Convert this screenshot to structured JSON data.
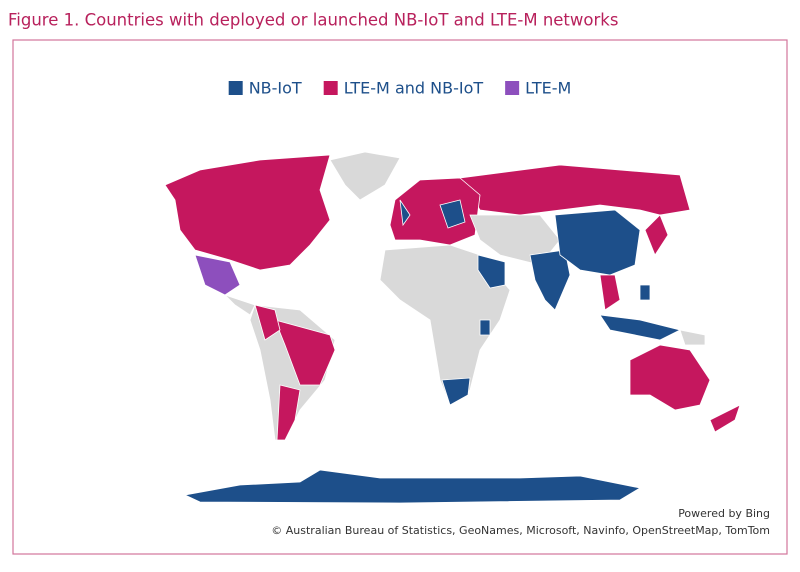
{
  "title": "Figure 1. Countries with deployed or launched NB-IoT and LTE-M networks",
  "legend": [
    {
      "name": "NB-IoT",
      "color": "#1d4f8a"
    },
    {
      "name": "LTE-M and NB-IoT",
      "color": "#c5175e"
    },
    {
      "name": "LTE-M",
      "color": "#8d4fbd"
    }
  ],
  "credit": "Powered by Bing",
  "attribution": "© Australian Bureau of Statistics, GeoNames, Microsoft, Navinfo, OpenStreetMap, TomTom"
}
